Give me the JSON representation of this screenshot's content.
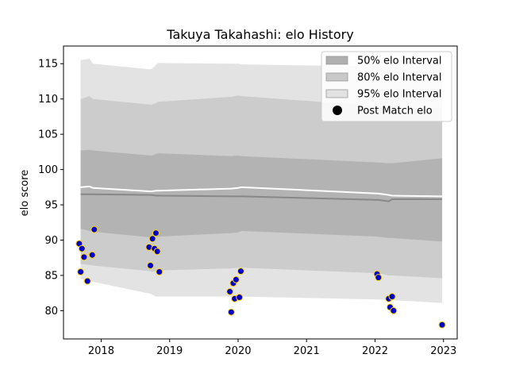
{
  "chart_data": {
    "type": "line",
    "title": "Takuya Takahashi: elo History",
    "xlabel": "",
    "ylabel": "elo score",
    "xlim": [
      2017.45,
      2023.2
    ],
    "ylim": [
      76.0,
      117.5
    ],
    "x_ticks": [
      2018,
      2019,
      2020,
      2021,
      2022,
      2023
    ],
    "x_tick_labels": [
      "2018",
      "2019",
      "2020",
      "2021",
      "2022",
      "2023"
    ],
    "y_ticks": [
      80,
      85,
      90,
      95,
      100,
      105,
      110,
      115
    ],
    "y_tick_labels": [
      "80",
      "85",
      "90",
      "95",
      "100",
      "105",
      "110",
      "115"
    ],
    "grid": false,
    "legend_position": "top-right",
    "legend": [
      {
        "label": "50% elo Interval",
        "kind": "band",
        "color": "#b0b0b0"
      },
      {
        "label": "80% elo Interval",
        "kind": "band",
        "color": "#c8c8c8"
      },
      {
        "label": "95% elo Interval",
        "kind": "band",
        "color": "#e2e2e2"
      },
      {
        "label": "Post Match elo",
        "kind": "point",
        "color": "#000000"
      }
    ],
    "colors": {
      "band95": "#e3e3e3",
      "band80": "#cccccc",
      "band50": "#b3b3b3",
      "mean_line": "#ffffff",
      "median_line": "#888888",
      "point_fill": "#0000cc",
      "point_edge": "#ffd700"
    },
    "bands": {
      "x": [
        2017.7,
        2017.83,
        2017.88,
        2018.72,
        2018.74,
        2018.8,
        2018.83,
        2019.9,
        2020.0,
        2020.05,
        2022.05,
        2022.2,
        2022.25,
        2022.98
      ],
      "band95_upper": [
        115.5,
        115.7,
        115.0,
        114.2,
        114.3,
        114.8,
        115.1,
        115.0,
        115.0,
        114.9,
        114.6,
        114.5,
        114.5,
        114.5
      ],
      "band95_lower": [
        84.5,
        84.2,
        84.1,
        82.4,
        82.3,
        82.0,
        82.0,
        82.0,
        82.0,
        82.0,
        81.6,
        81.5,
        81.5,
        81.1
      ],
      "band80_upper": [
        110.0,
        110.4,
        110.0,
        109.2,
        109.2,
        109.4,
        109.6,
        110.3,
        110.5,
        110.4,
        109.0,
        108.7,
        108.6,
        108.8
      ],
      "band80_lower": [
        86.6,
        86.5,
        86.4,
        85.6,
        85.5,
        85.6,
        85.7,
        86.0,
        86.1,
        86.1,
        85.3,
        85.0,
        85.0,
        84.6
      ],
      "band50_upper": [
        102.7,
        102.8,
        102.7,
        102.0,
        102.0,
        102.2,
        102.3,
        101.9,
        102.0,
        101.9,
        101.0,
        100.9,
        100.9,
        101.6
      ],
      "band50_lower": [
        91.6,
        91.3,
        91.2,
        90.4,
        90.3,
        90.4,
        90.5,
        91.0,
        91.1,
        91.3,
        90.5,
        90.3,
        90.3,
        89.8
      ]
    },
    "series": [
      {
        "kind": "line",
        "style": "mean",
        "x": [
          2017.7,
          2017.83,
          2017.88,
          2018.72,
          2018.74,
          2018.8,
          2018.83,
          2019.9,
          2020.0,
          2020.05,
          2022.05,
          2022.2,
          2022.25,
          2022.98
        ],
        "y": [
          97.5,
          97.6,
          97.4,
          96.9,
          96.9,
          97.0,
          97.0,
          97.3,
          97.4,
          97.5,
          96.6,
          96.4,
          96.3,
          96.2
        ]
      },
      {
        "kind": "line",
        "style": "median",
        "x": [
          2017.7,
          2017.83,
          2017.88,
          2018.72,
          2018.74,
          2018.8,
          2018.83,
          2019.9,
          2020.0,
          2020.05,
          2022.05,
          2022.2,
          2022.25,
          2022.98
        ],
        "y": [
          96.5,
          96.5,
          96.5,
          96.4,
          96.4,
          96.3,
          96.3,
          96.2,
          96.2,
          96.2,
          95.7,
          95.5,
          95.8,
          95.8
        ]
      },
      {
        "kind": "scatter",
        "name": "Post Match elo",
        "x": [
          2017.68,
          2017.7,
          2017.72,
          2017.75,
          2017.8,
          2017.87,
          2017.9,
          2018.7,
          2018.72,
          2018.75,
          2018.78,
          2018.8,
          2018.82,
          2018.85,
          2019.88,
          2019.9,
          2019.93,
          2019.95,
          2019.97,
          2020.02,
          2020.04,
          2022.03,
          2022.05,
          2022.2,
          2022.22,
          2022.25,
          2022.27,
          2022.98
        ],
        "y": [
          89.5,
          85.5,
          88.8,
          87.6,
          84.2,
          87.9,
          91.5,
          89.0,
          86.4,
          90.2,
          88.8,
          91.0,
          88.4,
          85.5,
          82.7,
          79.8,
          83.9,
          81.7,
          84.4,
          81.9,
          85.6,
          85.2,
          84.7,
          81.7,
          80.5,
          82.0,
          80.0,
          78.0
        ]
      }
    ]
  }
}
